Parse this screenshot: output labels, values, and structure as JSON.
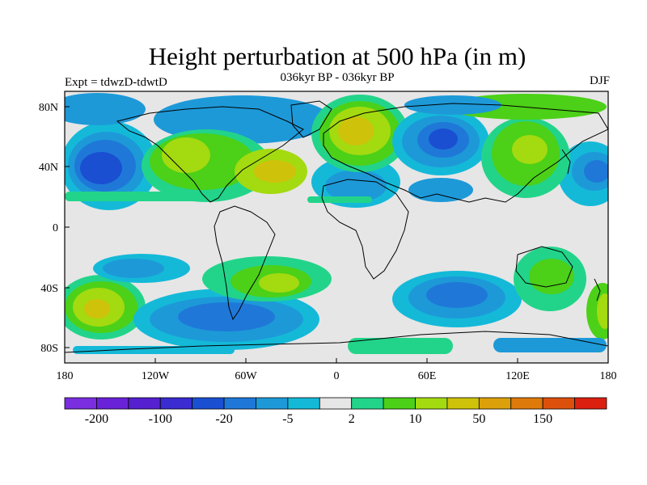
{
  "figure": {
    "title": "Height perturbation at 500 hPa (in m)",
    "subtitle": "036kyr BP - 036kyr BP",
    "left_label": "Expt = tdwzD-tdwtD",
    "right_label": "DJF"
  },
  "map": {
    "projection": "cylindrical equidistant",
    "lon_ticks": [
      "180",
      "120W",
      "60W",
      "0",
      "60E",
      "120E",
      "180"
    ],
    "lat_ticks": [
      "80N",
      "40N",
      "0",
      "40S",
      "80S"
    ],
    "field": "500 hPa geopotential height perturbation",
    "units": "m"
  },
  "colorbar": {
    "colors": [
      "#7a2ee0",
      "#6a22d8",
      "#5520d0",
      "#3a2cd0",
      "#1a4fd2",
      "#1f78d8",
      "#1d99d8",
      "#14b9d8",
      "#e6e6e6",
      "#22d48a",
      "#4cd018",
      "#a4da10",
      "#cfc20a",
      "#dca00a",
      "#de7a0a",
      "#dc500c",
      "#dc2010"
    ],
    "labels": [
      "-200",
      "-100",
      "-20",
      "-5",
      "2",
      "10",
      "50",
      "150"
    ]
  }
}
